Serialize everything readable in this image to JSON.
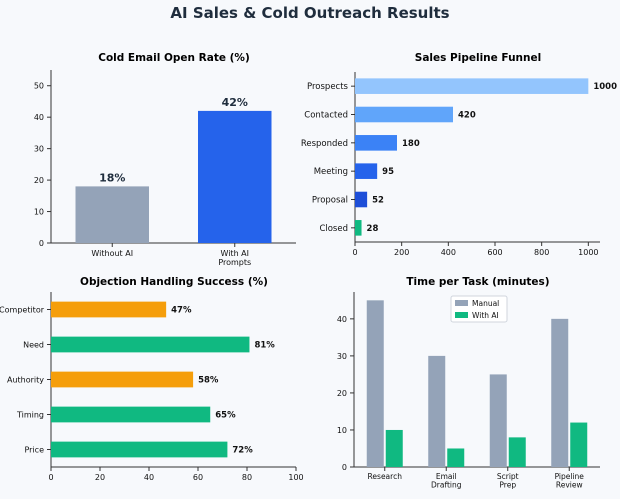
{
  "page": {
    "title": "AI Sales & Cold Outreach Results"
  },
  "colors": {
    "background": "#f7f9fc",
    "text": "#111111",
    "title": "#1f2d3d",
    "axis": "#333333",
    "gray": "#94a3b8",
    "blue": "#2563eb",
    "green": "#10b981",
    "orange": "#f59e0b",
    "funnel_1": "#93c5fd",
    "funnel_2": "#60a5fa",
    "funnel_3": "#3b82f6",
    "funnel_4": "#2563eb",
    "funnel_5": "#1d4ed8",
    "funnel_6": "#10b981"
  },
  "chart_data": [
    {
      "id": "open-rate",
      "type": "bar",
      "title": "Cold Email Open Rate (%)",
      "categories": [
        "Without AI",
        "With AI\nPrompts"
      ],
      "values": [
        18,
        42
      ],
      "value_labels": [
        "18%",
        "42%"
      ],
      "bar_colors": [
        "gray",
        "blue"
      ],
      "ylim": [
        0,
        55
      ],
      "yticks": [
        0,
        10,
        20,
        30,
        40,
        50
      ],
      "xlabel": "",
      "ylabel": "",
      "grid": false
    },
    {
      "id": "funnel",
      "type": "bar",
      "orientation": "horizontal",
      "title": "Sales Pipeline Funnel",
      "categories": [
        "Prospects",
        "Contacted",
        "Responded",
        "Meeting",
        "Proposal",
        "Closed"
      ],
      "values": [
        1000,
        420,
        180,
        95,
        52,
        28
      ],
      "value_labels": [
        "1000",
        "420",
        "180",
        "95",
        "52",
        "28"
      ],
      "bar_colors": [
        "funnel_1",
        "funnel_2",
        "funnel_3",
        "funnel_4",
        "funnel_5",
        "funnel_6"
      ],
      "xlim": [
        0,
        1050
      ],
      "xticks": [
        0,
        200,
        400,
        600,
        800,
        1000
      ],
      "grid": false
    },
    {
      "id": "objections",
      "type": "bar",
      "orientation": "horizontal",
      "title": "Objection Handling Success (%)",
      "categories": [
        "Competitor",
        "Need",
        "Authority",
        "Timing",
        "Price"
      ],
      "values": [
        47,
        81,
        58,
        65,
        72
      ],
      "value_labels": [
        "47%",
        "81%",
        "58%",
        "65%",
        "72%"
      ],
      "bar_colors": [
        "orange",
        "green",
        "orange",
        "green",
        "green"
      ],
      "xlim": [
        0,
        100
      ],
      "xticks": [
        0,
        20,
        40,
        60,
        80,
        100
      ],
      "grid": false
    },
    {
      "id": "time-per-task",
      "type": "bar",
      "title": "Time per Task (minutes)",
      "categories": [
        "Research",
        "Email\nDrafting",
        "Script\nPrep",
        "Pipeline\nReview"
      ],
      "series": [
        {
          "name": "Manual",
          "values": [
            45,
            30,
            25,
            40
          ],
          "color": "gray"
        },
        {
          "name": "With AI",
          "values": [
            10,
            5,
            8,
            12
          ],
          "color": "green"
        }
      ],
      "ylim": [
        0,
        47.25
      ],
      "yticks": [
        0,
        10,
        20,
        30,
        40
      ],
      "legend": "top-center",
      "grid": false
    }
  ]
}
